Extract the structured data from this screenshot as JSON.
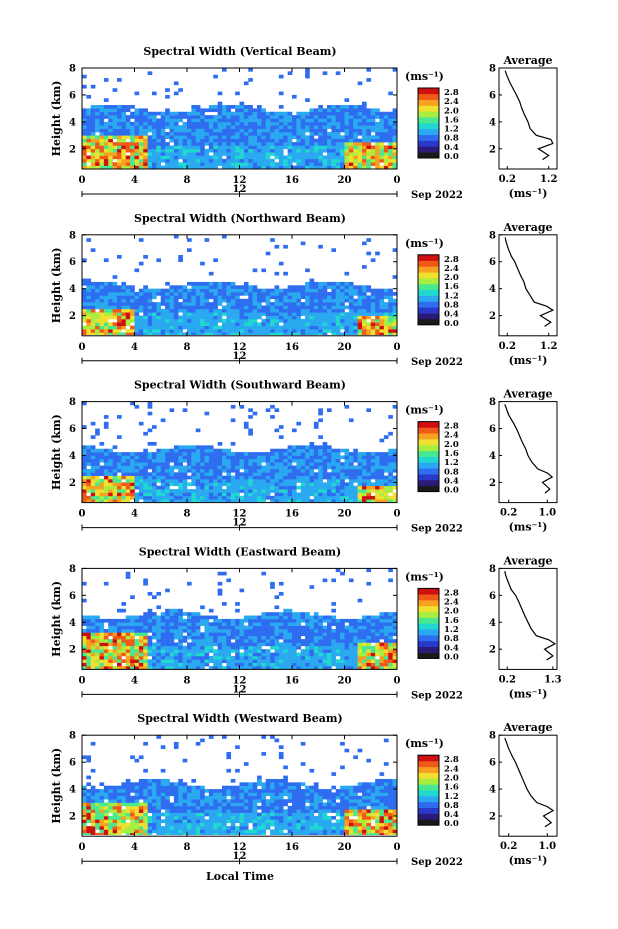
{
  "x_axis_label": "Local Time",
  "y_axis_label": "Height (km)",
  "x_ticks": [
    "0",
    "4",
    "8",
    "12",
    "16",
    "20",
    "0"
  ],
  "date_ticks": [
    "12"
  ],
  "date_label": "Sep 2022",
  "colorbar_unit": "(ms⁻¹)",
  "profile_title": "Average",
  "profile_xlabel": "(ms⁻¹)",
  "y_ticks": [
    "2",
    "4",
    "6",
    "8"
  ],
  "colors": {
    "colormap": [
      "#2a1a7a",
      "#2a3ac8",
      "#2f6df0",
      "#2aa8f0",
      "#20d8d0",
      "#48e890",
      "#a8ee40",
      "#f0e030",
      "#f8a020",
      "#f05a18",
      "#d01010"
    ],
    "lowest_bin": "#1a1a1a"
  },
  "chart_data": [
    {
      "type": "heatmap",
      "title": "Spectral Width (Vertical Beam)",
      "xlim": [
        0,
        24
      ],
      "ylim": [
        0.5,
        8
      ],
      "colorbar_ticks": [
        "2.8",
        "2.4",
        "2.0",
        "1.6",
        "1.2",
        "0.8",
        "0.4",
        "0.0"
      ],
      "colorbar_range": [
        0.0,
        2.8
      ],
      "description_values": {
        "top_km": 5.0,
        "high_region_upto_km": 3.0,
        "high_region_until_hr": 5,
        "late_high_from_hr": 20
      },
      "profile": {
        "type": "line",
        "xticks": [
          "0.2",
          "1.2"
        ],
        "xlim": [
          0.0,
          1.4
        ],
        "ylim": [
          0.5,
          8
        ],
        "height_km": [
          1.2,
          1.5,
          2.0,
          2.4,
          2.7,
          3.0,
          3.5,
          4.0,
          4.5,
          5.0,
          5.5,
          6.0,
          6.4,
          7.0,
          7.5,
          7.8
        ],
        "width": [
          1.05,
          1.2,
          0.95,
          1.3,
          1.25,
          0.9,
          0.75,
          0.7,
          0.62,
          0.55,
          0.5,
          0.42,
          0.35,
          0.25,
          0.18,
          0.15
        ]
      }
    },
    {
      "type": "heatmap",
      "title": "Spectral Width (Northward Beam)",
      "xlim": [
        0,
        24
      ],
      "ylim": [
        0.5,
        8
      ],
      "colorbar_ticks": [
        "2.8",
        "2.4",
        "2.0",
        "1.6",
        "1.2",
        "0.8",
        "0.4",
        "0.0"
      ],
      "colorbar_range": [
        0.0,
        2.8
      ],
      "description_values": {
        "top_km": 4.3,
        "high_region_upto_km": 2.6,
        "high_region_until_hr": 4,
        "late_high_from_hr": 21
      },
      "profile": {
        "type": "line",
        "xticks": [
          "0.2",
          "1.2"
        ],
        "xlim": [
          0.0,
          1.4
        ],
        "ylim": [
          0.5,
          8
        ],
        "height_km": [
          1.2,
          1.5,
          2.0,
          2.4,
          2.7,
          3.0,
          3.5,
          4.0,
          4.5,
          5.0,
          5.5,
          6.0,
          6.4,
          7.0,
          7.5,
          7.8
        ],
        "width": [
          1.1,
          1.25,
          1.0,
          1.3,
          1.15,
          0.85,
          0.75,
          0.65,
          0.6,
          0.52,
          0.45,
          0.38,
          0.3,
          0.22,
          0.17,
          0.15
        ]
      }
    },
    {
      "type": "heatmap",
      "title": "Spectral Width (Southward Beam)",
      "xlim": [
        0,
        24
      ],
      "ylim": [
        0.5,
        8
      ],
      "colorbar_ticks": [
        "2.8",
        "2.4",
        "2.0",
        "1.6",
        "1.2",
        "0.8",
        "0.4",
        "0.0"
      ],
      "colorbar_range": [
        0.0,
        2.8
      ],
      "description_values": {
        "top_km": 4.5,
        "high_region_upto_km": 2.4,
        "high_region_until_hr": 4,
        "late_high_from_hr": 21
      },
      "profile": {
        "type": "line",
        "xticks": [
          "0.2",
          "1.0"
        ],
        "xlim": [
          0.0,
          1.2
        ],
        "ylim": [
          0.5,
          8
        ],
        "height_km": [
          1.2,
          1.5,
          2.0,
          2.4,
          2.7,
          3.0,
          3.5,
          4.0,
          4.5,
          5.0,
          5.5,
          6.0,
          6.4,
          7.0,
          7.5,
          7.8
        ],
        "width": [
          0.95,
          1.05,
          0.9,
          1.1,
          1.0,
          0.8,
          0.68,
          0.6,
          0.55,
          0.48,
          0.42,
          0.36,
          0.3,
          0.2,
          0.15,
          0.12
        ]
      }
    },
    {
      "type": "heatmap",
      "title": "Spectral Width (Eastward Beam)",
      "xlim": [
        0,
        24
      ],
      "ylim": [
        0.5,
        8
      ],
      "colorbar_ticks": [
        "2.8",
        "2.4",
        "2.0",
        "1.6",
        "1.2",
        "0.8",
        "0.4",
        "0.0"
      ],
      "colorbar_range": [
        0.0,
        2.8
      ],
      "description_values": {
        "top_km": 4.6,
        "high_region_upto_km": 3.2,
        "high_region_until_hr": 5,
        "late_high_from_hr": 21
      },
      "profile": {
        "type": "line",
        "xticks": [
          "0.2",
          "1.3"
        ],
        "xlim": [
          0.0,
          1.4
        ],
        "ylim": [
          0.5,
          8
        ],
        "height_km": [
          1.2,
          1.5,
          2.0,
          2.4,
          2.7,
          3.0,
          3.5,
          4.0,
          4.5,
          5.0,
          5.5,
          6.0,
          6.4,
          7.0,
          7.5,
          7.8
        ],
        "width": [
          1.15,
          1.3,
          1.1,
          1.35,
          1.2,
          0.9,
          0.78,
          0.7,
          0.62,
          0.55,
          0.48,
          0.4,
          0.3,
          0.22,
          0.16,
          0.14
        ]
      }
    },
    {
      "type": "heatmap",
      "title": "Spectral Width (Westward Beam)",
      "xlim": [
        0,
        24
      ],
      "ylim": [
        0.5,
        8
      ],
      "colorbar_ticks": [
        "2.8",
        "2.4",
        "2.0",
        "1.6",
        "1.2",
        "0.8",
        "0.4",
        "0.0"
      ],
      "colorbar_range": [
        0.0,
        2.8
      ],
      "description_values": {
        "top_km": 4.4,
        "high_region_upto_km": 3.0,
        "high_region_until_hr": 5,
        "late_high_from_hr": 20
      },
      "profile": {
        "type": "line",
        "xticks": [
          "0.2",
          "1.0"
        ],
        "xlim": [
          0.0,
          1.2
        ],
        "ylim": [
          0.5,
          8
        ],
        "height_km": [
          1.2,
          1.5,
          2.0,
          2.4,
          2.7,
          3.0,
          3.5,
          4.0,
          4.5,
          5.0,
          5.5,
          6.0,
          6.4,
          7.0,
          7.5,
          7.8
        ],
        "width": [
          0.95,
          1.08,
          0.92,
          1.12,
          1.0,
          0.78,
          0.66,
          0.58,
          0.52,
          0.46,
          0.4,
          0.34,
          0.28,
          0.2,
          0.15,
          0.12
        ]
      }
    }
  ]
}
